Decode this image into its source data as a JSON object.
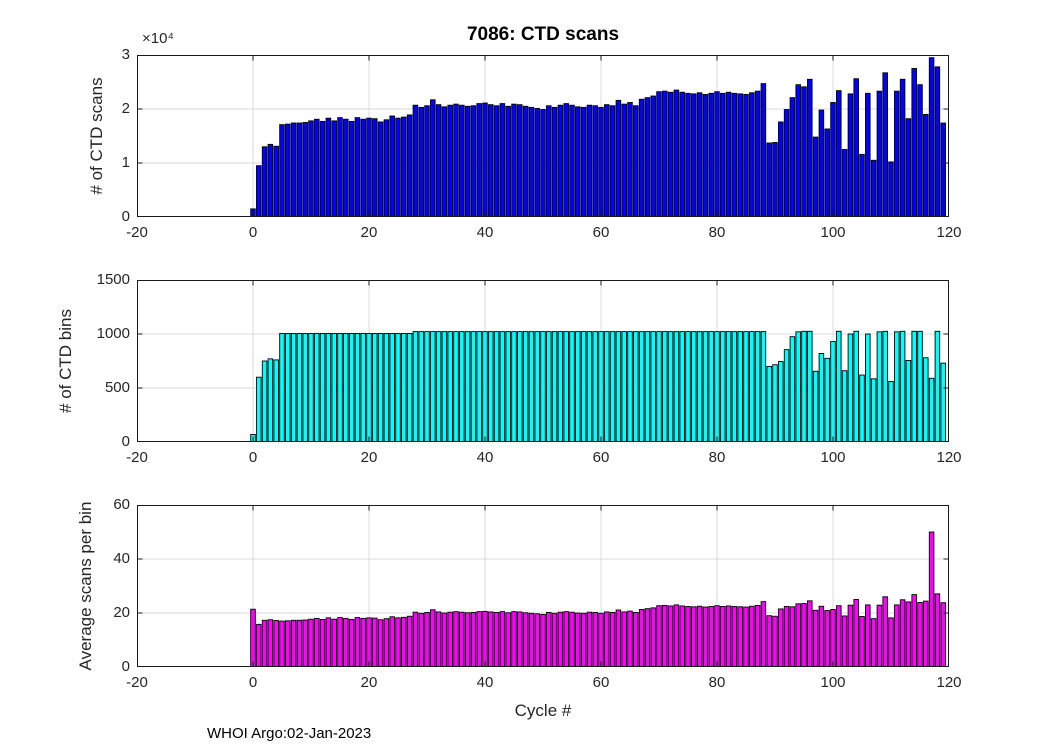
{
  "title": "7086: CTD scans",
  "xlabel": "Cycle #",
  "footer": "WHOI Argo:02-Jan-2023",
  "chart_data": [
    {
      "type": "bar",
      "name": "ctd-scans",
      "ylabel": "# of CTD scans",
      "y_exponent": "×10⁴",
      "ylim": [
        0,
        30000
      ],
      "ytick_values": [
        0,
        10000,
        20000,
        30000
      ],
      "ytick_labels": [
        "0",
        "1",
        "2",
        "3"
      ],
      "xlim": [
        -20,
        120
      ],
      "xtick_values": [
        -20,
        0,
        20,
        40,
        60,
        80,
        100,
        120
      ],
      "xtick_labels": [
        "-20",
        "0",
        "20",
        "40",
        "60",
        "80",
        "100",
        "120"
      ],
      "grid": true,
      "bar_color": "#0000FF",
      "bar_edge_color": "#000000",
      "x_start": 0,
      "values": [
        1500,
        9500,
        13000,
        13450,
        13100,
        17100,
        17200,
        17400,
        17400,
        17500,
        17800,
        18100,
        17700,
        18300,
        17800,
        18400,
        18100,
        17700,
        18400,
        18100,
        18300,
        18200,
        17600,
        18000,
        18700,
        18300,
        18500,
        18900,
        20700,
        20300,
        20600,
        21700,
        20800,
        20400,
        20700,
        20900,
        20700,
        20500,
        20600,
        21000,
        21100,
        20800,
        20600,
        21000,
        20500,
        20900,
        20800,
        20500,
        20300,
        20100,
        19900,
        20600,
        20300,
        20700,
        21000,
        20700,
        20400,
        20300,
        20700,
        20600,
        20300,
        20800,
        20600,
        21600,
        20900,
        21200,
        20600,
        21800,
        22100,
        22400,
        23200,
        23300,
        23100,
        23500,
        23100,
        22900,
        22800,
        23000,
        22700,
        22900,
        23200,
        22900,
        23100,
        22900,
        22800,
        22700,
        23000,
        23300,
        24700,
        13700,
        13800,
        17600,
        19900,
        22100,
        24500,
        24100,
        25500,
        14800,
        19800,
        16300,
        21200,
        23400,
        12500,
        22800,
        25600,
        11600,
        22900,
        10500,
        23300,
        26700,
        10200,
        23300,
        25500,
        18200,
        27500,
        24500,
        19000,
        29500,
        27800,
        17400
      ]
    },
    {
      "type": "bar",
      "name": "ctd-bins",
      "ylabel": "# of CTD bins",
      "ylim": [
        0,
        1500
      ],
      "ytick_values": [
        0,
        500,
        1000,
        1500
      ],
      "ytick_labels": [
        "0",
        "500",
        "1000",
        "1500"
      ],
      "xlim": [
        -20,
        120
      ],
      "xtick_values": [
        -20,
        0,
        20,
        40,
        60,
        80,
        100,
        120
      ],
      "xtick_labels": [
        "-20",
        "0",
        "20",
        "40",
        "60",
        "80",
        "100",
        "120"
      ],
      "grid": true,
      "bar_color": "#00FFFF",
      "bar_edge_color": "#000000",
      "x_start": 0,
      "values": [
        70,
        600,
        750,
        770,
        760,
        1005,
        1005,
        1005,
        1005,
        1005,
        1005,
        1005,
        1005,
        1005,
        1005,
        1005,
        1005,
        1005,
        1005,
        1005,
        1005,
        1005,
        1005,
        1005,
        1005,
        1005,
        1005,
        1005,
        1022,
        1022,
        1022,
        1022,
        1022,
        1022,
        1022,
        1022,
        1022,
        1022,
        1022,
        1022,
        1022,
        1022,
        1022,
        1022,
        1022,
        1022,
        1022,
        1022,
        1022,
        1022,
        1022,
        1022,
        1022,
        1022,
        1022,
        1022,
        1022,
        1022,
        1022,
        1022,
        1022,
        1022,
        1022,
        1022,
        1022,
        1022,
        1022,
        1022,
        1022,
        1022,
        1022,
        1022,
        1022,
        1022,
        1022,
        1022,
        1022,
        1022,
        1022,
        1022,
        1022,
        1022,
        1022,
        1022,
        1022,
        1022,
        1022,
        1022,
        1022,
        700,
        715,
        745,
        855,
        975,
        1020,
        1025,
        1025,
        655,
        820,
        775,
        930,
        1025,
        660,
        1000,
        1025,
        620,
        1000,
        585,
        1020,
        1025,
        560,
        1020,
        1025,
        755,
        1025,
        1025,
        780,
        590,
        1025,
        730
      ]
    },
    {
      "type": "bar",
      "name": "average-scans-per-bin",
      "ylabel": "Average scans per bin",
      "ylim": [
        0,
        60
      ],
      "ytick_values": [
        0,
        20,
        40,
        60
      ],
      "ytick_labels": [
        "0",
        "20",
        "40",
        "60"
      ],
      "xlim": [
        -20,
        120
      ],
      "xtick_values": [
        -20,
        0,
        20,
        40,
        60,
        80,
        100,
        120
      ],
      "xtick_labels": [
        "-20",
        "0",
        "20",
        "40",
        "60",
        "80",
        "100",
        "120"
      ],
      "grid": true,
      "bar_color": "#FF00FF",
      "bar_edge_color": "#000000",
      "x_start": 0,
      "values": [
        21.4,
        15.8,
        17.3,
        17.5,
        17.2,
        17.0,
        17.1,
        17.3,
        17.3,
        17.4,
        17.7,
        18.0,
        17.6,
        18.2,
        17.7,
        18.3,
        18.0,
        17.6,
        18.3,
        18.0,
        18.2,
        18.1,
        17.5,
        17.9,
        18.6,
        18.2,
        18.4,
        18.8,
        20.3,
        19.9,
        20.2,
        21.2,
        20.4,
        20.0,
        20.3,
        20.5,
        20.3,
        20.1,
        20.2,
        20.5,
        20.6,
        20.4,
        20.2,
        20.5,
        20.1,
        20.5,
        20.4,
        20.1,
        19.9,
        19.7,
        19.5,
        20.2,
        19.9,
        20.3,
        20.5,
        20.3,
        20.0,
        19.9,
        20.3,
        20.2,
        19.9,
        20.4,
        20.2,
        21.1,
        20.4,
        20.7,
        20.2,
        21.3,
        21.6,
        21.9,
        22.7,
        22.8,
        22.6,
        23.0,
        22.6,
        22.4,
        22.3,
        22.5,
        22.2,
        22.4,
        22.7,
        22.4,
        22.6,
        22.4,
        22.3,
        22.2,
        22.5,
        22.8,
        24.2,
        19.0,
        18.8,
        21.5,
        22.4,
        22.3,
        23.4,
        23.5,
        24.5,
        21.0,
        22.5,
        20.9,
        21.3,
        22.7,
        18.9,
        22.9,
        25.0,
        18.7,
        23.0,
        17.9,
        22.9,
        26.0,
        18.2,
        23.0,
        24.9,
        24.1,
        26.8,
        23.9,
        24.4,
        50.0,
        27.1,
        23.8
      ]
    }
  ],
  "layout_colors": {
    "grid_color": "#DBDBDB",
    "frame_color": "#1A1A1A",
    "background": "#FFFFFF"
  }
}
